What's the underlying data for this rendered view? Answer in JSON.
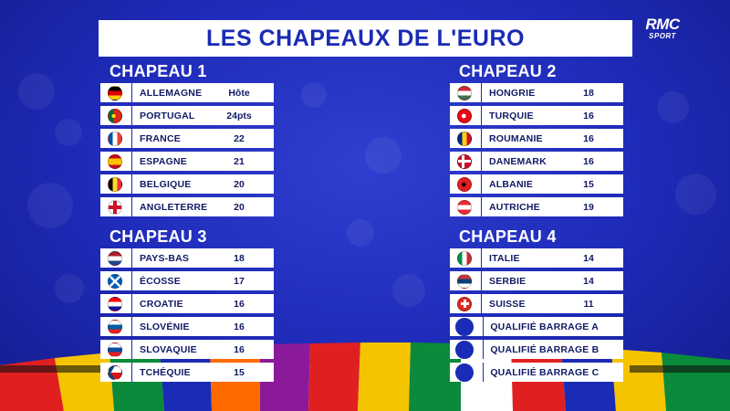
{
  "title": "LES CHAPEAUX DE L'EURO",
  "logo": {
    "line1": "RMC",
    "line2": "SPORT"
  },
  "pots": [
    {
      "label": "CHAPEAU 1",
      "teams": [
        {
          "name": "ALLEMAGNE",
          "points": "Hôte",
          "flag": "germany-flag-icon",
          "colors": [
            "#000000",
            "#dd0000",
            "#ffce00"
          ]
        },
        {
          "name": "PORTUGAL",
          "points": "24pts",
          "flag": "portugal-flag-icon",
          "colors": [
            "#046a38",
            "#da291c",
            "#ffe900"
          ]
        },
        {
          "name": "FRANCE",
          "points": "22",
          "flag": "france-flag-icon",
          "colors": [
            "#0055a4",
            "#ffffff",
            "#ef4135"
          ]
        },
        {
          "name": "ESPAGNE",
          "points": "21",
          "flag": "spain-flag-icon",
          "colors": [
            "#c60b1e",
            "#ffc400",
            "#c60b1e"
          ]
        },
        {
          "name": "BELGIQUE",
          "points": "20",
          "flag": "belgium-flag-icon",
          "colors": [
            "#000000",
            "#fdda24",
            "#ef3340"
          ]
        },
        {
          "name": "ANGLETERRE",
          "points": "20",
          "flag": "england-flag-icon",
          "colors": [
            "#ffffff",
            "#ce1124"
          ]
        }
      ]
    },
    {
      "label": "CHAPEAU 2",
      "teams": [
        {
          "name": "HONGRIE",
          "points": "18",
          "flag": "hungary-flag-icon",
          "colors": [
            "#ce2939",
            "#ffffff",
            "#477050"
          ]
        },
        {
          "name": "TURQUIE",
          "points": "16",
          "flag": "turkey-flag-icon",
          "colors": [
            "#e30a17",
            "#ffffff"
          ]
        },
        {
          "name": "ROUMANIE",
          "points": "16",
          "flag": "romania-flag-icon",
          "colors": [
            "#002b7f",
            "#fcd116",
            "#ce1126"
          ]
        },
        {
          "name": "DANEMARK",
          "points": "16",
          "flag": "denmark-flag-icon",
          "colors": [
            "#c8102e",
            "#ffffff"
          ]
        },
        {
          "name": "ALBANIE",
          "points": "15",
          "flag": "albania-flag-icon",
          "colors": [
            "#e41e20",
            "#000000"
          ]
        },
        {
          "name": "AUTRICHE",
          "points": "19",
          "flag": "austria-flag-icon",
          "colors": [
            "#ed2939",
            "#ffffff",
            "#ed2939"
          ]
        }
      ]
    },
    {
      "label": "CHAPEAU 3",
      "teams": [
        {
          "name": "PAYS-BAS",
          "points": "18",
          "flag": "netherlands-flag-icon",
          "colors": [
            "#ae1c28",
            "#ffffff",
            "#21468b"
          ]
        },
        {
          "name": "ÉCOSSE",
          "points": "17",
          "flag": "scotland-flag-icon",
          "colors": [
            "#005eb8",
            "#ffffff"
          ]
        },
        {
          "name": "CROATIE",
          "points": "16",
          "flag": "croatia-flag-icon",
          "colors": [
            "#ff0000",
            "#ffffff",
            "#171796"
          ]
        },
        {
          "name": "SLOVÉNIE",
          "points": "16",
          "flag": "slovenia-flag-icon",
          "colors": [
            "#ffffff",
            "#005da4",
            "#ed1c24"
          ]
        },
        {
          "name": "SLOVAQUIE",
          "points": "16",
          "flag": "slovakia-flag-icon",
          "colors": [
            "#ffffff",
            "#0b4ea2",
            "#ee1c25"
          ]
        },
        {
          "name": "TCHÉQUIE",
          "points": "15",
          "flag": "czechia-flag-icon",
          "colors": [
            "#ffffff",
            "#d7141a",
            "#11457e"
          ]
        }
      ]
    },
    {
      "label": "CHAPEAU 4",
      "teams": [
        {
          "name": "ITALIE",
          "points": "14",
          "flag": "italy-flag-icon",
          "colors": [
            "#009246",
            "#ffffff",
            "#ce2b37"
          ]
        },
        {
          "name": "SERBIE",
          "points": "14",
          "flag": "serbia-flag-icon",
          "colors": [
            "#c6363c",
            "#0c4076",
            "#ffffff"
          ]
        },
        {
          "name": "SUISSE",
          "points": "11",
          "flag": "switzerland-flag-icon",
          "colors": [
            "#da291c",
            "#ffffff"
          ]
        },
        {
          "name": "QUALIFIÉ BARRAGE A",
          "points": "",
          "flag": "placeholder-circle-icon",
          "colors": [
            "#1a2bb5"
          ]
        },
        {
          "name": "QUALIFIÉ BARRAGE B",
          "points": "",
          "flag": "placeholder-circle-icon",
          "colors": [
            "#1a2bb5"
          ]
        },
        {
          "name": "QUALIFIÉ BARRAGE C",
          "points": "",
          "flag": "placeholder-circle-icon",
          "colors": [
            "#1a2bb5"
          ]
        }
      ]
    }
  ]
}
